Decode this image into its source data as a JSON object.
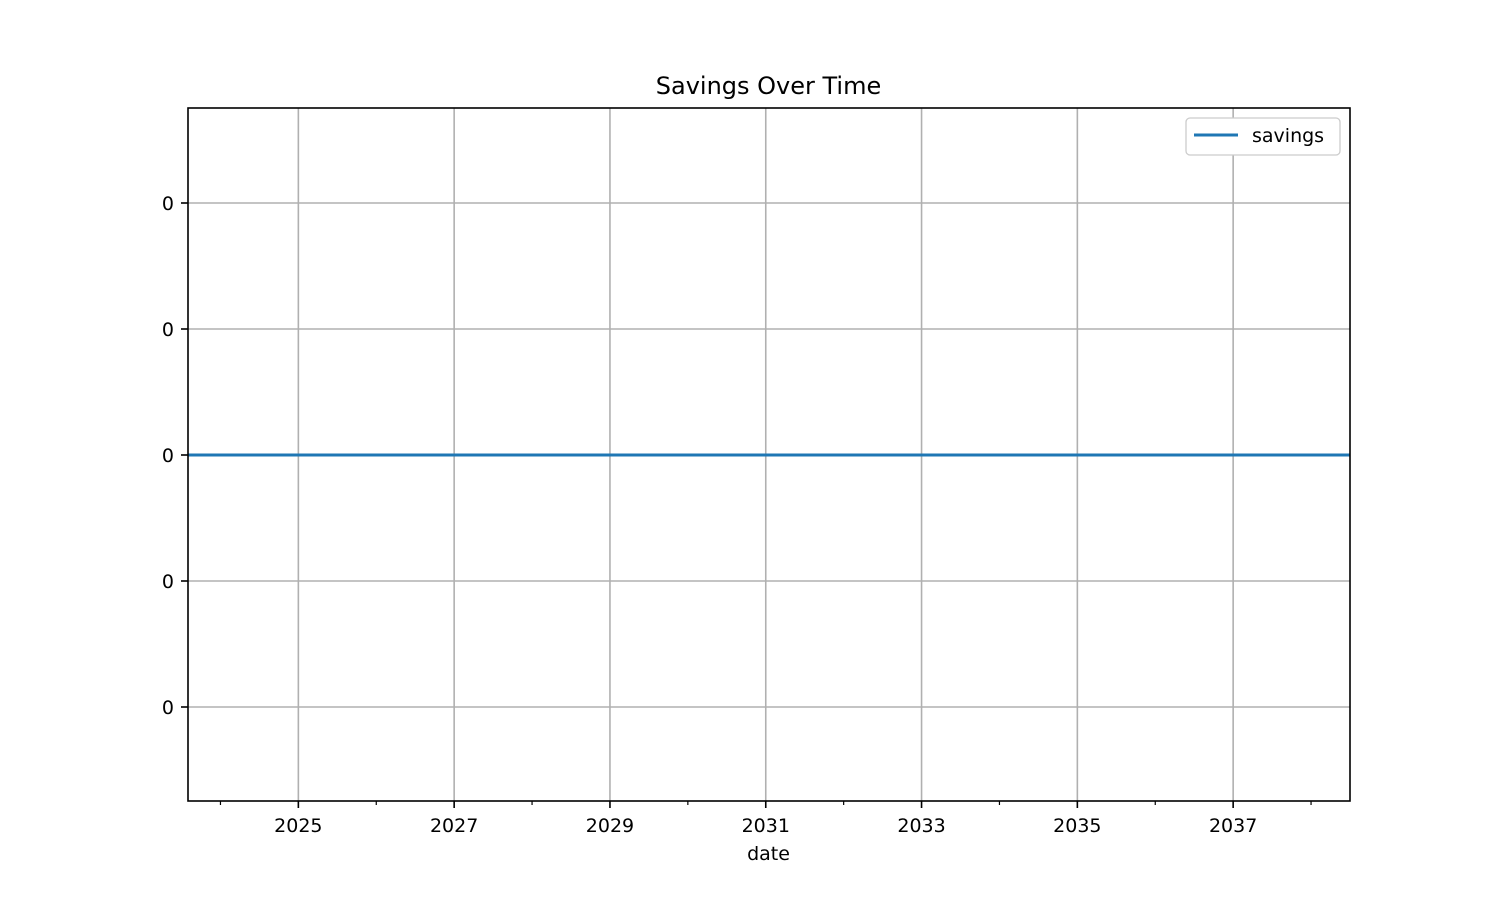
{
  "chart_data": {
    "type": "line",
    "title": "Savings Over Time",
    "xlabel": "date",
    "ylabel": "",
    "x_tick_labels": [
      "2025",
      "2027",
      "2029",
      "2031",
      "2033",
      "2035",
      "2037"
    ],
    "y_tick_labels": [
      "0",
      "0",
      "0",
      "0",
      "0"
    ],
    "xlim": [
      "2023-08",
      "2038-07"
    ],
    "grid": true,
    "legend_position": "upper right",
    "series": [
      {
        "name": "savings",
        "color": "#1f77b4",
        "x": [
          "2023-08",
          "2038-07"
        ],
        "y": [
          0,
          0
        ]
      }
    ]
  }
}
